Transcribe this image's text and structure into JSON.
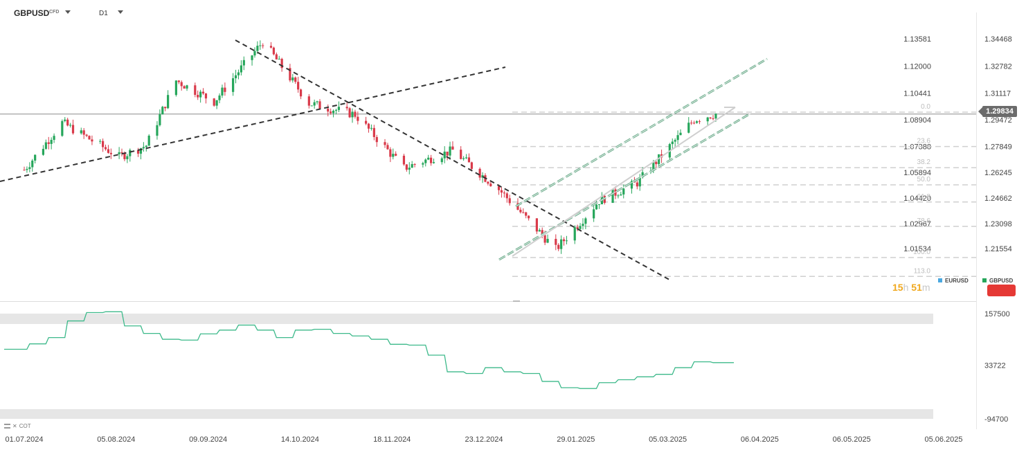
{
  "toolbar": {
    "symbol": "GBPUSD",
    "symbol_type": "CFD",
    "timeframe": "D1"
  },
  "current_price": "1.29834",
  "countdown": {
    "hours": "15",
    "hours_unit": "h",
    "minutes": "51",
    "minutes_unit": "m"
  },
  "legend": {
    "items": [
      {
        "label": "EURUSD",
        "color": "#4aa8e0"
      },
      {
        "label": "GBPUSD",
        "color": "#26a65b"
      }
    ]
  },
  "indicator": {
    "name": "COT"
  },
  "colors": {
    "up": "#26a65b",
    "down": "#d93a4a",
    "cot_line": "#3cb98a",
    "fib": "#cfcfcf",
    "channel": "#6aaa8a"
  },
  "chart_data": [
    {
      "type": "candlestick",
      "symbol": "GBPUSD",
      "x_labels": [
        "01.07.2024",
        "05.08.2024",
        "09.09.2024",
        "14.10.2024",
        "18.11.2024",
        "23.12.2024",
        "29.01.2025",
        "05.03.2025",
        "06.04.2025",
        "06.05.2025",
        "05.06.2025"
      ],
      "y_ticks_right": [
        "1.34468",
        "1.32782",
        "1.31117",
        "1.29472",
        "1.27849",
        "1.26245",
        "1.24662",
        "1.23098",
        "1.21554"
      ],
      "y_ticks_left": [
        "1.13581",
        "1.12000",
        "1.10441",
        "1.08904",
        "1.07388",
        "1.05894",
        "1.04420",
        "1.02967",
        "1.01534"
      ],
      "ylim": [
        1.208,
        1.3505
      ],
      "last_price": 1.29834,
      "close_path": [
        [
          "01.07.2024",
          1.264
        ],
        [
          "15.07.2024",
          1.293
        ],
        [
          "05.08.2024",
          1.272
        ],
        [
          "15.08.2024",
          1.279
        ],
        [
          "26.08.2024",
          1.319
        ],
        [
          "09.09.2024",
          1.306
        ],
        [
          "27.09.2024",
          1.343
        ],
        [
          "14.10.2024",
          1.305
        ],
        [
          "31.10.2024",
          1.298
        ],
        [
          "18.11.2024",
          1.265
        ],
        [
          "06.12.2024",
          1.276
        ],
        [
          "23.12.2024",
          1.252
        ],
        [
          "13.01.2025",
          1.215
        ],
        [
          "29.01.2025",
          1.245
        ],
        [
          "12.02.2025",
          1.256
        ],
        [
          "05.03.2025",
          1.295
        ],
        [
          "13.03.2025",
          1.2985
        ]
      ],
      "fibonacci": {
        "levels": [
          "0.0",
          "23.6",
          "38.2",
          "50.0",
          "61.8",
          "78.6",
          "100.0",
          "113.0"
        ],
        "from": 1.2995,
        "to": 1.21
      },
      "trendlines": [
        {
          "style": "dashed",
          "from": [
            "01.07.2024",
            1.258
          ],
          "to": [
            "23.12.2024",
            1.321
          ]
        },
        {
          "style": "dashed",
          "from": [
            "25.09.2024",
            1.344
          ],
          "to": [
            "10.02.2025",
            1.1955
          ]
        }
      ],
      "channel": {
        "style": "dashed",
        "color": "#6aaa8a"
      }
    },
    {
      "type": "line",
      "name": "COT",
      "y_ticks": [
        "157500",
        "33722",
        "-94700"
      ],
      "ylim": [
        -94700,
        157500
      ],
      "points": [
        [
          "01.07.2024",
          72000
        ],
        [
          "03.07.2024",
          85000
        ],
        [
          "10.07.2024",
          100000
        ],
        [
          "17.07.2024",
          140000
        ],
        [
          "24.07.2024",
          160000
        ],
        [
          "31.07.2024",
          162000
        ],
        [
          "07.08.2024",
          128000
        ],
        [
          "14.08.2024",
          110000
        ],
        [
          "21.08.2024",
          96000
        ],
        [
          "28.08.2024",
          94000
        ],
        [
          "04.09.2024",
          109000
        ],
        [
          "11.09.2024",
          118000
        ],
        [
          "18.09.2024",
          130000
        ],
        [
          "25.09.2024",
          118000
        ],
        [
          "02.10.2024",
          100000
        ],
        [
          "09.10.2024",
          118000
        ],
        [
          "16.10.2024",
          120000
        ],
        [
          "23.10.2024",
          110000
        ],
        [
          "30.10.2024",
          104000
        ],
        [
          "06.11.2024",
          96000
        ],
        [
          "13.11.2024",
          84000
        ],
        [
          "20.11.2024",
          82000
        ],
        [
          "27.11.2024",
          58000
        ],
        [
          "04.12.2024",
          18000
        ],
        [
          "11.12.2024",
          14000
        ],
        [
          "18.12.2024",
          28000
        ],
        [
          "25.12.2024",
          18000
        ],
        [
          "01.01.2025",
          14000
        ],
        [
          "08.01.2025",
          -5000
        ],
        [
          "15.01.2025",
          -20000
        ],
        [
          "22.01.2025",
          -22000
        ],
        [
          "29.01.2025",
          -8000
        ],
        [
          "05.02.2025",
          -1000
        ],
        [
          "12.02.2025",
          6000
        ],
        [
          "19.02.2025",
          12000
        ],
        [
          "26.02.2025",
          28000
        ],
        [
          "05.03.2025",
          42000
        ],
        [
          "12.03.2025",
          40000
        ]
      ]
    }
  ]
}
